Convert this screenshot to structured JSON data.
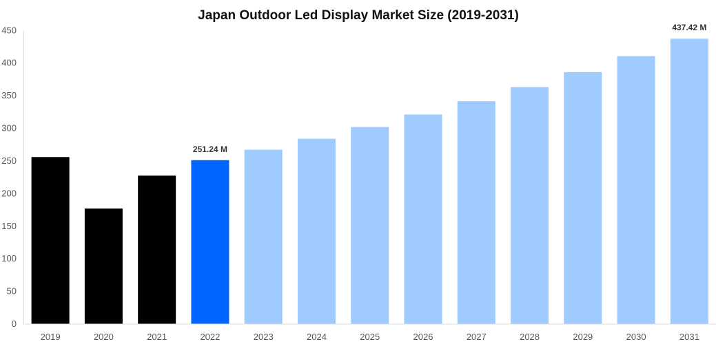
{
  "chart_data": {
    "type": "bar",
    "title": "Japan Outdoor Led Display Market Size (2019-2031)",
    "xlabel": "",
    "ylabel": "",
    "categories": [
      "2019",
      "2020",
      "2021",
      "2022",
      "2023",
      "2024",
      "2025",
      "2026",
      "2027",
      "2028",
      "2029",
      "2030",
      "2031"
    ],
    "values": [
      256,
      177,
      227.5,
      251.24,
      267.2,
      284,
      302,
      321.2,
      341.6,
      363.2,
      386.2,
      410.7,
      437.42
    ],
    "bar_colors": [
      "#000000",
      "#000000",
      "#000000",
      "#0066ff",
      "#a0cbff",
      "#a0cbff",
      "#a0cbff",
      "#a0cbff",
      "#a0cbff",
      "#a0cbff",
      "#a0cbff",
      "#a0cbff",
      "#a0cbff"
    ],
    "data_labels": {
      "2022": "251.24 M",
      "2031": "437.42 M"
    },
    "ylim": [
      0,
      450
    ],
    "yticks": [
      0,
      50,
      100,
      150,
      200,
      250,
      300,
      350,
      400,
      450
    ],
    "grid": false,
    "legend": "none"
  }
}
